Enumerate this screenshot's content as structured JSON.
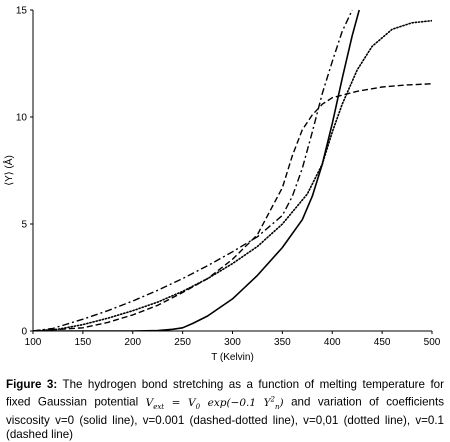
{
  "chart_data": {
    "type": "line",
    "xlabel": "T (Kelvin)",
    "ylabel": "⟨Y⟩ (Å)",
    "xlim": [
      100,
      500
    ],
    "ylim": [
      0,
      15
    ],
    "xticks": [
      100,
      150,
      200,
      250,
      300,
      350,
      400,
      450,
      500
    ],
    "yticks": [
      0,
      5,
      10,
      15
    ],
    "grid": false,
    "legend": "none",
    "series": [
      {
        "style": "solid",
        "x": [
          100,
          200,
          225,
          240,
          250,
          260,
          275,
          300,
          325,
          350,
          370,
          380,
          390,
          400,
          410,
          420,
          427
        ],
        "y": [
          0,
          0,
          0.02,
          0.08,
          0.15,
          0.35,
          0.7,
          1.5,
          2.6,
          3.9,
          5.2,
          6.3,
          7.8,
          9.7,
          11.8,
          13.8,
          15
        ]
      },
      {
        "style": "dashdot",
        "x": [
          100,
          120,
          150,
          175,
          200,
          225,
          250,
          275,
          300,
          325,
          350,
          360,
          370,
          380,
          390,
          400,
          410,
          420
        ],
        "y": [
          0,
          0.12,
          0.55,
          0.95,
          1.4,
          1.9,
          2.45,
          3.05,
          3.7,
          4.4,
          5.4,
          6.3,
          7.6,
          9.3,
          11.1,
          12.6,
          14.0,
          15
        ]
      },
      {
        "style": "dotted",
        "x": [
          100,
          125,
          150,
          175,
          200,
          225,
          250,
          275,
          300,
          325,
          350,
          375,
          390,
          400,
          410,
          425,
          440,
          460,
          480,
          500
        ],
        "y": [
          0,
          0.08,
          0.3,
          0.6,
          0.95,
          1.35,
          1.85,
          2.45,
          3.15,
          3.95,
          5.0,
          6.4,
          7.8,
          9.3,
          10.6,
          12.2,
          13.3,
          14.1,
          14.4,
          14.5
        ]
      },
      {
        "style": "dashed",
        "x": [
          100,
          150,
          175,
          200,
          225,
          250,
          275,
          300,
          325,
          350,
          360,
          370,
          380,
          390,
          400,
          425,
          450,
          475,
          500
        ],
        "y": [
          0,
          0.15,
          0.4,
          0.75,
          1.2,
          1.8,
          2.45,
          3.35,
          4.5,
          6.7,
          8.2,
          9.4,
          10.1,
          10.6,
          10.9,
          11.2,
          11.4,
          11.5,
          11.55
        ]
      }
    ]
  },
  "caption": {
    "label": "Figure 3:",
    "text_1": " The hydrogen bond stretching as a function of melting temperature for fixed Gaussian potential ",
    "math_1": "V",
    "math_1_sub": "ext",
    "math_eq": " = V",
    "math_eq_sub": "0",
    "math_exp": " exp(−0.1 Y",
    "math_exp_sub": "n",
    "math_exp_sup": "2",
    "math_close": ")",
    "text_2": " and variation of coefficients viscosity v=0  (solid line), v=0.001 (dashed-dotted line), v=0,01 (dotted line), v=0.1 (dashed line)"
  }
}
